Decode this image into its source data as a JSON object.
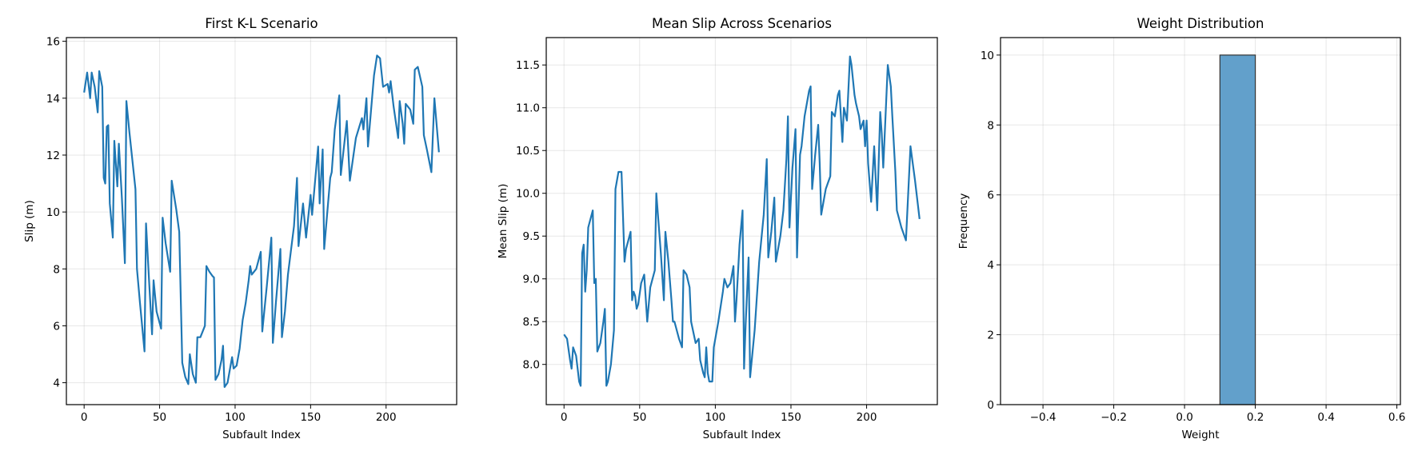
{
  "chart_data": [
    {
      "type": "line",
      "title": "First K-L Scenario",
      "xlabel": "Subfault Index",
      "ylabel": "Slip (m)",
      "color": "#1f77b4",
      "grid": true,
      "x": [
        0,
        2,
        4,
        5,
        7,
        9,
        10,
        12,
        13,
        14,
        15,
        16,
        17,
        19,
        20,
        22,
        23,
        25,
        27,
        28,
        30,
        34,
        35,
        37,
        40,
        41,
        43,
        45,
        46,
        48,
        51,
        52,
        54,
        57,
        58,
        61,
        63,
        65,
        67,
        69,
        70,
        72,
        74,
        75,
        77,
        80,
        81,
        83,
        85,
        86,
        87,
        89,
        91,
        92,
        93,
        95,
        98,
        99,
        101,
        103,
        105,
        107,
        109,
        110,
        111,
        114,
        117,
        118,
        121,
        124,
        125,
        127,
        130,
        131,
        133,
        135,
        139,
        141,
        142,
        145,
        147,
        150,
        151,
        155,
        156,
        158,
        159,
        163,
        164,
        166,
        169,
        170,
        174,
        176,
        180,
        184,
        185,
        187,
        188,
        192,
        194,
        196,
        198,
        201,
        202,
        203,
        205,
        208,
        209,
        211,
        212,
        213,
        216,
        218,
        219,
        221,
        224,
        225,
        227,
        230,
        232,
        235
      ],
      "values": [
        14.2,
        14.9,
        14.0,
        14.9,
        14.4,
        13.5,
        14.95,
        14.4,
        11.2,
        11.0,
        13.0,
        13.05,
        10.3,
        9.1,
        12.5,
        10.9,
        12.4,
        10.5,
        8.2,
        13.9,
        12.8,
        10.8,
        8.0,
        6.8,
        5.1,
        9.6,
        7.6,
        5.7,
        7.6,
        6.5,
        5.9,
        9.8,
        8.9,
        7.9,
        11.1,
        10.1,
        9.3,
        4.7,
        4.2,
        3.95,
        5.0,
        4.3,
        4.0,
        5.6,
        5.6,
        6.0,
        8.1,
        7.9,
        7.75,
        7.7,
        4.1,
        4.3,
        4.8,
        5.3,
        3.85,
        4.0,
        4.9,
        4.5,
        4.6,
        5.2,
        6.2,
        6.8,
        7.6,
        8.1,
        7.8,
        8.0,
        8.6,
        5.8,
        7.4,
        9.1,
        5.4,
        6.8,
        8.7,
        5.6,
        6.5,
        7.8,
        9.5,
        11.2,
        8.8,
        10.3,
        9.1,
        10.6,
        9.9,
        12.3,
        10.3,
        12.2,
        8.7,
        11.2,
        11.4,
        12.9,
        14.1,
        11.3,
        13.2,
        11.1,
        12.6,
        13.3,
        12.9,
        14.0,
        12.3,
        14.8,
        15.5,
        15.4,
        14.4,
        14.5,
        14.2,
        14.6,
        13.7,
        12.6,
        13.9,
        13.1,
        12.4,
        13.8,
        13.6,
        13.1,
        15.0,
        15.1,
        14.4,
        12.7,
        12.2,
        11.4,
        14.0,
        12.1
      ],
      "xlim": [
        -11.75,
        246.75
      ],
      "xticks": [
        0,
        50,
        100,
        150,
        200
      ],
      "ylim": [
        3.23,
        16.13
      ],
      "yticks": [
        4,
        6,
        8,
        10,
        12,
        14,
        16
      ]
    },
    {
      "type": "line",
      "title": "Mean Slip Across Scenarios",
      "xlabel": "Subfault Index",
      "ylabel": "Mean Slip (m)",
      "color": "#1f77b4",
      "grid": true,
      "x": [
        0,
        2,
        4,
        5,
        6,
        8,
        10,
        11,
        12,
        13,
        14,
        15,
        16,
        19,
        20,
        21,
        22,
        24,
        26,
        27,
        28,
        29,
        31,
        33,
        34,
        36,
        38,
        40,
        41,
        44,
        45,
        46,
        47,
        48,
        49,
        51,
        53,
        55,
        57,
        60,
        61,
        64,
        66,
        67,
        69,
        71,
        72,
        73,
        76,
        78,
        79,
        81,
        83,
        84,
        87,
        89,
        90,
        92,
        93,
        94,
        95,
        96,
        98,
        99,
        102,
        105,
        106,
        108,
        110,
        112,
        113,
        114,
        116,
        118,
        119,
        120,
        122,
        123,
        126,
        129,
        132,
        134,
        135,
        137,
        139,
        140,
        143,
        145,
        147,
        148,
        149,
        151,
        153,
        154,
        156,
        157,
        159,
        162,
        163,
        164,
        166,
        168,
        169,
        170,
        173,
        176,
        177,
        179,
        181,
        182,
        184,
        185,
        187,
        189,
        190,
        192,
        193,
        195,
        196,
        198,
        199,
        200,
        201,
        203,
        205,
        207,
        209,
        210,
        211,
        214,
        216,
        217,
        219,
        220,
        223,
        226,
        229,
        232,
        235
      ],
      "values": [
        8.35,
        8.3,
        8.05,
        7.95,
        8.2,
        8.1,
        7.8,
        7.75,
        9.3,
        9.4,
        8.85,
        9.1,
        9.6,
        9.8,
        8.95,
        9.0,
        8.15,
        8.25,
        8.5,
        8.65,
        7.75,
        7.8,
        8.0,
        8.4,
        10.05,
        10.25,
        10.25,
        9.2,
        9.35,
        9.55,
        8.75,
        8.85,
        8.8,
        8.65,
        8.7,
        8.95,
        9.05,
        8.5,
        8.9,
        9.1,
        10.0,
        9.3,
        8.75,
        9.55,
        9.2,
        8.75,
        8.5,
        8.5,
        8.3,
        8.2,
        9.1,
        9.05,
        8.9,
        8.5,
        8.25,
        8.3,
        8.05,
        7.9,
        7.85,
        8.2,
        7.9,
        7.8,
        7.8,
        8.2,
        8.5,
        8.85,
        9.0,
        8.9,
        8.95,
        9.15,
        8.5,
        8.75,
        9.4,
        9.8,
        7.95,
        8.45,
        9.25,
        7.85,
        8.4,
        9.2,
        9.75,
        10.4,
        9.25,
        9.55,
        9.95,
        9.2,
        9.5,
        9.8,
        10.4,
        10.9,
        9.6,
        10.3,
        10.75,
        9.25,
        10.45,
        10.55,
        10.9,
        11.2,
        11.25,
        10.05,
        10.45,
        10.8,
        10.35,
        9.75,
        10.05,
        10.2,
        10.95,
        10.9,
        11.15,
        11.2,
        10.6,
        11.0,
        10.85,
        11.6,
        11.5,
        11.15,
        11.05,
        10.9,
        10.75,
        10.85,
        10.55,
        10.85,
        10.35,
        9.9,
        10.55,
        9.8,
        10.95,
        10.7,
        10.3,
        11.5,
        11.25,
        10.9,
        10.25,
        9.8,
        9.6,
        9.45,
        10.55,
        10.15,
        9.7
      ],
      "xlim": [
        -11.75,
        246.75
      ],
      "xticks": [
        0,
        50,
        100,
        150,
        200
      ],
      "ylim": [
        7.53,
        11.82
      ],
      "yticks": [
        {
          "value": 8,
          "label": "8.0"
        },
        8.5,
        {
          "value": 9,
          "label": "9.0"
        },
        9.5,
        {
          "value": 10,
          "label": "10.0"
        },
        10.5,
        {
          "value": 11,
          "label": "11.0"
        },
        11.5
      ]
    },
    {
      "type": "histogram",
      "title": "Weight Distribution",
      "xlabel": "Weight",
      "ylabel": "Frequency",
      "color": "#62a0cb",
      "grid": true,
      "bins": [
        -0.4,
        -0.3,
        -0.2,
        -0.1,
        0.0,
        0.1,
        0.2,
        0.3,
        0.4,
        0.5,
        0.6
      ],
      "values": [
        0,
        0,
        0,
        0,
        0,
        10,
        0,
        0,
        0,
        0
      ],
      "xlim": [
        -0.52,
        0.61
      ],
      "xticks": [
        {
          "value": -0.4,
          "label": "−0.4"
        },
        {
          "value": -0.2,
          "label": "−0.2"
        },
        {
          "value": 0,
          "label": "0.0"
        },
        0.2,
        0.4,
        0.6
      ],
      "ylim": [
        0,
        10.5
      ],
      "yticks": [
        0,
        2,
        4,
        6,
        8,
        10
      ]
    }
  ]
}
